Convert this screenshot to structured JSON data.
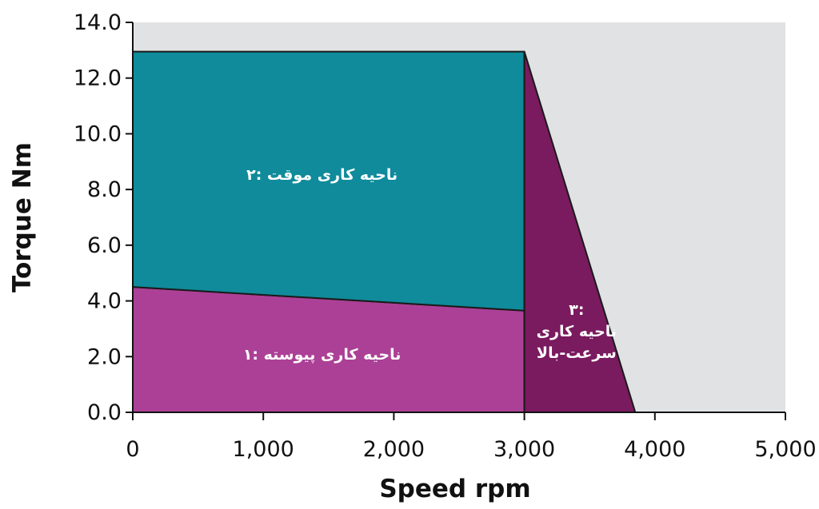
{
  "chart_data": {
    "type": "area",
    "xlabel": "Speed rpm",
    "ylabel": "Torque Nm",
    "xlim": [
      0,
      5000
    ],
    "ylim": [
      0,
      14
    ],
    "x_ticks": [
      "0",
      "1,000",
      "2,000",
      "3,000",
      "4,000",
      "5,000"
    ],
    "x_tick_values": [
      0,
      1000,
      2000,
      3000,
      4000,
      5000
    ],
    "y_ticks": [
      "0.0",
      "2.0",
      "4.0",
      "6.0",
      "8.0",
      "10.0",
      "12.0",
      "14.0"
    ],
    "y_tick_values": [
      0,
      2,
      4,
      6,
      8,
      10,
      12,
      14
    ],
    "grid": false,
    "background_color": "#e0e2e3",
    "regions": [
      {
        "id": "continuous",
        "label_lines": [
          "۱: ناحیه کاری پیوسته"
        ],
        "color": "#ac4096",
        "points": [
          [
            0,
            0
          ],
          [
            0,
            4.5
          ],
          [
            3000,
            3.65
          ],
          [
            3000,
            0
          ]
        ],
        "label_anchor": [
          1450,
          1.9
        ]
      },
      {
        "id": "intermittent",
        "label_lines": [
          "۲: ناحیه کاری موقت"
        ],
        "color": "#0f8b9b",
        "points": [
          [
            0,
            4.5
          ],
          [
            0,
            12.95
          ],
          [
            3000,
            12.95
          ],
          [
            3000,
            3.65
          ]
        ],
        "label_anchor": [
          1450,
          8.35
        ]
      },
      {
        "id": "high-speed",
        "label_lines": [
          "۳:",
          "ناحیه کاری",
          "سرعت-بالا"
        ],
        "color": "#7a1a5f",
        "points": [
          [
            3000,
            0
          ],
          [
            3000,
            12.95
          ],
          [
            3850,
            0
          ]
        ],
        "label_anchor": [
          3400,
          1.95
        ]
      }
    ]
  }
}
